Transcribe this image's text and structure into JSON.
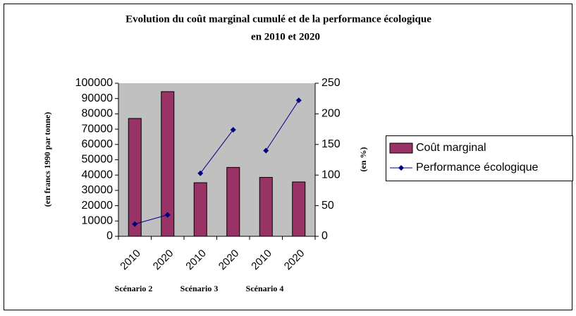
{
  "chart_data": {
    "type": "bar",
    "title": [
      "Evolution du coût marginal cumulé et de la performance écologique",
      "en 2010 et 2020"
    ],
    "categories": [
      "2010",
      "2020",
      "2010",
      "2020",
      "2010",
      "2020"
    ],
    "groups": [
      "Scénario 2",
      "Scénario 3",
      "Scénario 4"
    ],
    "series": [
      {
        "name": "Coût marginal",
        "color": "#993366",
        "values": [
          77000,
          94500,
          35000,
          45000,
          38500,
          35500
        ]
      },
      {
        "name": "Performance écologique",
        "color": "#000080",
        "type": "line",
        "axis": "y2",
        "values": [
          20,
          35,
          103,
          174,
          140,
          222
        ]
      }
    ],
    "ylabel": "(en francs 1990 par tonne)",
    "y2label": "(en %)",
    "ylim": [
      0,
      100000
    ],
    "yticks": [
      0,
      10000,
      20000,
      30000,
      40000,
      50000,
      60000,
      70000,
      80000,
      90000,
      100000
    ],
    "y2lim": [
      0,
      250
    ],
    "y2ticks": [
      0,
      50,
      100,
      150,
      200,
      250
    ],
    "legend": "right",
    "plot_background": "#c0c0c0"
  }
}
